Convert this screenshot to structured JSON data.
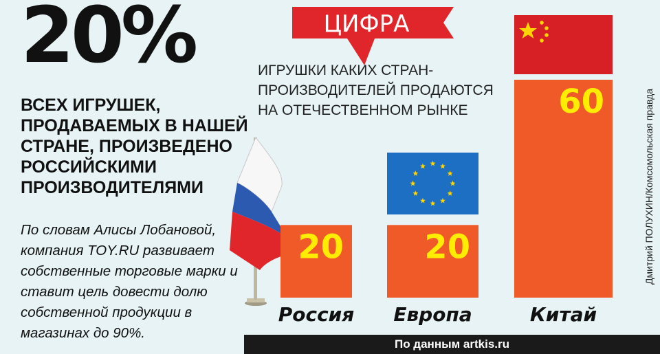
{
  "headline_figure": "20%",
  "headline_text": "ВСЕХ ИГРУШЕК, ПРОДАВАЕМЫХ В НАШЕЙ СТРАНЕ, ПРОИЗВЕДЕНО РОССИЙСКИМИ ПРОИЗВОДИТЕЛЯМИ",
  "body_text": "По словам Алисы Лобановой, компания TOY.RU развивает собственные торговые марки и ставит цель довести долю собственной продукции в магазинах до 90%.",
  "banner_label": "ЦИФРА",
  "source": "По данным artkis.ru",
  "credit": "Дмитрий ПОЛУХИН/Комсомольская правда",
  "colors": {
    "bar": "#f05a28",
    "value_text": "#ffed00",
    "banner": "#e0262a",
    "background": "#e7f3f4",
    "eu_blue": "#1c6fc2",
    "china_red": "#d71f26"
  },
  "icons": [
    "russia-flag",
    "eu-flag",
    "china-flag"
  ],
  "chart_data": {
    "type": "bar",
    "title": "ИГРУШКИ КАКИХ СТРАН-ПРОИЗВОДИТЕЛЕЙ ПРОДАЮТСЯ НА ОТЕЧЕСТВЕННОМ РЫНКЕ",
    "categories": [
      "Россия",
      "Европа",
      "Китай"
    ],
    "values": [
      20,
      20,
      60
    ],
    "unit": "%",
    "ylim": [
      0,
      60
    ],
    "grid": false,
    "legend": "none"
  }
}
